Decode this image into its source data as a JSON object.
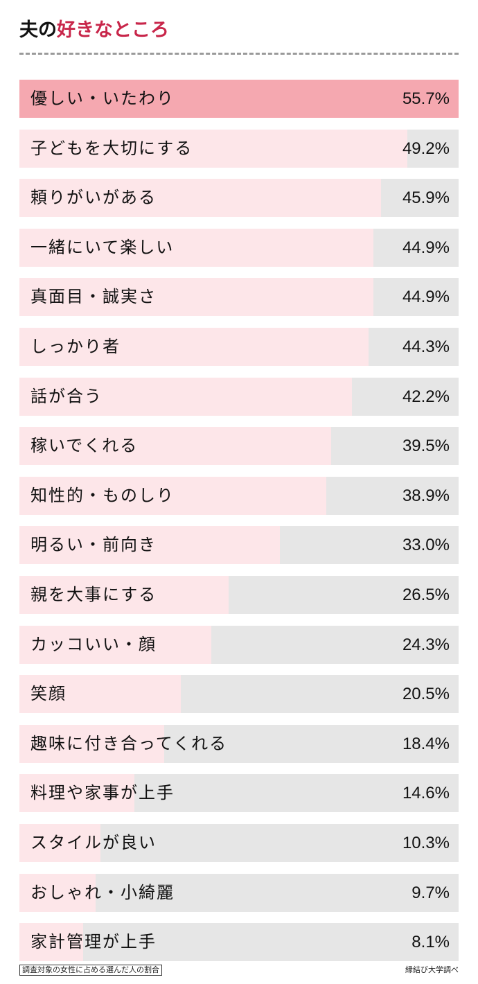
{
  "header": {
    "title_part1": "夫の",
    "title_part2": "好きなところ",
    "accent_color": "#c8264a"
  },
  "footer": {
    "note": "調査対象の女性に占める選んだ人の割合",
    "source": "縁結び大学調べ"
  },
  "colors": {
    "top_bar": "#f5a8b0",
    "bar_fill": "#fde6e9",
    "bar_track": "#e6e6e6"
  },
  "chart_data": {
    "type": "bar",
    "orientation": "horizontal",
    "title": "夫の好きなところ",
    "xlabel": "",
    "ylabel": "",
    "note": "調査対象の女性に占める選んだ人の割合",
    "source": "縁結び大学調べ",
    "unit": "%",
    "categories": [
      "優しい・いたわり",
      "子どもを大切にする",
      "頼りがいがある",
      "一緒にいて楽しい",
      "真面目・誠実さ",
      "しっかり者",
      "話が合う",
      "稼いでくれる",
      "知性的・ものしり",
      "明るい・前向き",
      "親を大事にする",
      "カッコいい・顔",
      "笑顔",
      "趣味に付き合ってくれる",
      "料理や家事が上手",
      "スタイルが良い",
      "おしゃれ・小綺麗",
      "家計管理が上手"
    ],
    "values": [
      55.7,
      49.2,
      45.9,
      44.9,
      44.9,
      44.3,
      42.2,
      39.5,
      38.9,
      33.0,
      26.5,
      24.3,
      20.5,
      18.4,
      14.6,
      10.3,
      9.7,
      8.1
    ],
    "labels": [
      "55.7%",
      "49.2%",
      "45.9%",
      "44.9%",
      "44.9%",
      "44.3%",
      "42.2%",
      "39.5%",
      "38.9%",
      "33.0%",
      "26.5%",
      "24.3%",
      "20.5%",
      "18.4%",
      "14.6%",
      "10.3%",
      "9.7%",
      "8.1%"
    ],
    "xlim": [
      0,
      55.7
    ],
    "grid": false,
    "legend": null
  }
}
